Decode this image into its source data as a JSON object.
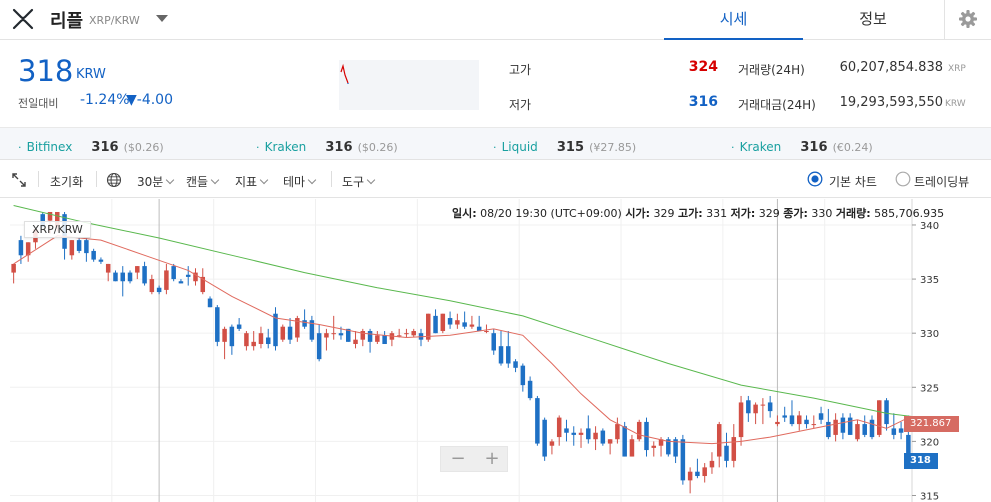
{
  "header": {
    "coin_name": "리플",
    "pair": "XRP/KRW",
    "tabs": [
      "시세",
      "정보"
    ],
    "active_tab": "시세"
  },
  "price": {
    "current": "318",
    "unit": "KRW",
    "change_label": "전일대비",
    "change_rate": "-1.24%",
    "change_amount": "▼-4.00",
    "color_down": "#1261c4",
    "color_up": "#d60000"
  },
  "stats": {
    "high_label": "고가",
    "high_value": "324",
    "low_label": "저가",
    "low_value": "316",
    "volume_label": "거래량(24H)",
    "volume_value": "60,207,854.838",
    "volume_unit": "XRP",
    "amount_label": "거래대금(24H)",
    "amount_value": "19,293,593,550",
    "amount_unit": "KRW"
  },
  "exchanges": [
    {
      "name": "Bitfinex",
      "price": "316",
      "sub": "($0.26)"
    },
    {
      "name": "Kraken",
      "price": "316",
      "sub": "($0.26)"
    },
    {
      "name": "Liquid",
      "price": "315",
      "sub": "(¥27.85)"
    },
    {
      "name": "Kraken",
      "price": "316",
      "sub": "(€0.24)"
    }
  ],
  "toolbar": {
    "reset": "초기화",
    "interval": "30분",
    "candle": "캔들",
    "indicator": "지표",
    "theme": "테마",
    "tools": "도구",
    "basic_chart": "기본 차트",
    "tradingview": "트레이딩뷰",
    "selected_chart": "기본 차트"
  },
  "chart_info": {
    "time_label": "일시:",
    "time": "08/20 19:30 (UTC+09:00)",
    "open_label": "시가:",
    "open": "329",
    "high_label": "고가:",
    "high": "331",
    "low_label": "저가:",
    "low": "329",
    "close_label": "종가:",
    "close": "330",
    "volume_label": "거래량:",
    "volume": "585,706.935"
  },
  "chart_data": {
    "type": "candlestick",
    "series_label": "XRP/KRW",
    "y_ticks": [
      315,
      320,
      325,
      330,
      335,
      340
    ],
    "ylim": [
      314.4,
      342.4
    ],
    "candles_ohlc": [
      [
        335.6,
        336.4,
        334.6,
        336.4
      ],
      [
        338.6,
        339.0,
        336.4,
        337.2
      ],
      [
        337.2,
        338.4,
        336.6,
        338.4
      ],
      [
        338.4,
        339.6,
        337.8,
        339.6
      ],
      [
        341.0,
        341.2,
        339.8,
        339.8
      ],
      [
        340.4,
        341.2,
        339.2,
        341.2
      ],
      [
        339.8,
        341.2,
        339.4,
        341.2
      ],
      [
        341.0,
        341.2,
        336.8,
        337.8
      ],
      [
        337.2,
        338.6,
        336.8,
        338.6
      ],
      [
        338.6,
        338.8,
        337.4,
        337.6
      ],
      [
        338.6,
        338.8,
        336.6,
        337.4
      ],
      [
        337.6,
        337.8,
        336.6,
        336.8
      ],
      [
        336.8,
        337.0,
        336.4,
        336.6
      ],
      [
        335.6,
        336.4,
        334.8,
        336.4
      ],
      [
        335.6,
        335.8,
        334.8,
        334.8
      ],
      [
        335.6,
        336.2,
        333.4,
        334.8
      ],
      [
        335.6,
        335.8,
        334.6,
        334.8
      ],
      [
        335.6,
        336.2,
        335.0,
        336.2
      ],
      [
        336.2,
        336.6,
        334.4,
        334.6
      ],
      [
        333.8,
        335.4,
        333.6,
        335.0
      ],
      [
        334.2,
        334.4,
        333.6,
        333.8
      ],
      [
        334.0,
        336.4,
        333.6,
        335.8
      ],
      [
        336.2,
        336.4,
        334.8,
        335.0
      ],
      [
        334.8,
        335.0,
        334.6,
        334.6
      ],
      [
        335.4,
        336.2,
        334.4,
        335.2
      ],
      [
        334.8,
        336.0,
        334.4,
        335.6
      ],
      [
        333.8,
        336.0,
        333.6,
        335.2
      ],
      [
        333.2,
        333.4,
        332.4,
        332.4
      ],
      [
        332.4,
        332.6,
        328.8,
        329.2
      ],
      [
        329.2,
        330.6,
        327.6,
        330.4
      ],
      [
        330.6,
        330.8,
        328.0,
        328.8
      ],
      [
        330.8,
        331.4,
        330.2,
        330.4
      ],
      [
        328.8,
        330.2,
        328.4,
        330.0
      ],
      [
        328.8,
        330.2,
        328.4,
        329.2
      ],
      [
        329.0,
        330.6,
        328.6,
        330.0
      ],
      [
        329.6,
        330.4,
        328.6,
        329.0
      ],
      [
        331.8,
        332.4,
        328.4,
        328.8
      ],
      [
        329.4,
        330.8,
        329.2,
        330.6
      ],
      [
        330.6,
        331.4,
        329.0,
        329.4
      ],
      [
        329.6,
        331.6,
        329.2,
        331.4
      ],
      [
        331.2,
        332.2,
        330.4,
        330.6
      ],
      [
        331.2,
        331.6,
        329.2,
        329.4
      ],
      [
        330.0,
        330.8,
        327.4,
        327.6
      ],
      [
        329.6,
        330.4,
        328.4,
        330.0
      ],
      [
        330.0,
        331.6,
        329.4,
        330.0
      ],
      [
        330.0,
        330.6,
        329.4,
        329.8
      ],
      [
        330.4,
        330.4,
        329.2,
        329.2
      ],
      [
        329.0,
        330.2,
        328.6,
        329.4
      ],
      [
        329.4,
        330.4,
        328.8,
        330.2
      ],
      [
        330.2,
        330.4,
        328.2,
        329.2
      ],
      [
        329.2,
        330.2,
        329.0,
        329.8
      ],
      [
        329.8,
        330.2,
        329.0,
        329.0
      ],
      [
        329.4,
        330.2,
        328.8,
        330.0
      ],
      [
        329.8,
        330.4,
        329.6,
        329.8
      ],
      [
        330.0,
        330.4,
        329.6,
        330.0
      ],
      [
        329.8,
        330.4,
        329.6,
        330.2
      ],
      [
        330.0,
        330.4,
        328.8,
        329.4
      ],
      [
        329.4,
        331.8,
        329.2,
        331.8
      ],
      [
        331.6,
        332.2,
        330.0,
        330.0
      ],
      [
        330.2,
        331.8,
        330.0,
        331.8
      ],
      [
        331.4,
        332.0,
        330.4,
        330.8
      ],
      [
        330.8,
        331.8,
        330.4,
        331.2
      ],
      [
        331.0,
        332.0,
        330.4,
        330.6
      ],
      [
        330.6,
        331.6,
        330.4,
        330.8
      ],
      [
        330.6,
        331.6,
        330.4,
        330.2
      ],
      [
        330.2,
        330.8,
        330.0,
        330.2
      ],
      [
        330.0,
        330.4,
        328.0,
        328.4
      ],
      [
        328.8,
        330.2,
        327.0,
        327.2
      ],
      [
        328.8,
        330.2,
        326.8,
        327.2
      ],
      [
        327.4,
        327.6,
        326.4,
        326.8
      ],
      [
        327.0,
        327.2,
        324.6,
        325.2
      ],
      [
        325.6,
        326.0,
        323.8,
        324.0
      ],
      [
        324.0,
        324.2,
        319.6,
        319.8
      ],
      [
        322.0,
        322.2,
        318.2,
        318.6
      ],
      [
        319.6,
        320.2,
        318.8,
        320.0
      ],
      [
        320.4,
        322.4,
        319.6,
        322.2
      ],
      [
        321.2,
        322.0,
        320.0,
        320.8
      ],
      [
        320.8,
        321.4,
        319.6,
        320.6
      ],
      [
        320.6,
        321.2,
        319.4,
        320.8
      ],
      [
        321.2,
        322.4,
        319.8,
        320.2
      ],
      [
        320.2,
        321.4,
        319.2,
        320.8
      ],
      [
        321.0,
        321.2,
        319.6,
        319.8
      ],
      [
        319.8,
        320.2,
        318.8,
        320.2
      ],
      [
        320.2,
        322.2,
        319.8,
        321.6
      ],
      [
        321.4,
        321.8,
        318.6,
        318.6
      ],
      [
        318.6,
        320.6,
        318.6,
        320.2
      ],
      [
        320.2,
        322.0,
        320.0,
        321.8
      ],
      [
        321.8,
        322.2,
        318.6,
        319.2
      ],
      [
        319.4,
        320.0,
        318.6,
        319.6
      ],
      [
        319.6,
        320.4,
        318.6,
        320.2
      ],
      [
        320.2,
        320.4,
        318.6,
        318.8
      ],
      [
        320.2,
        320.4,
        318.0,
        318.6
      ],
      [
        320.2,
        320.6,
        316.0,
        316.4
      ],
      [
        316.4,
        317.6,
        315.2,
        317.2
      ],
      [
        317.2,
        318.4,
        316.6,
        316.8
      ],
      [
        316.8,
        318.0,
        316.2,
        317.6
      ],
      [
        317.6,
        319.0,
        317.0,
        318.2
      ],
      [
        318.6,
        321.8,
        317.6,
        321.6
      ],
      [
        319.6,
        320.8,
        317.6,
        318.2
      ],
      [
        318.2,
        321.6,
        317.6,
        320.4
      ],
      [
        320.4,
        324.2,
        319.6,
        323.6
      ],
      [
        323.8,
        324.2,
        321.8,
        322.6
      ],
      [
        322.6,
        323.6,
        321.6,
        323.4
      ],
      [
        323.4,
        324.0,
        321.6,
        323.4
      ],
      [
        323.6,
        324.2,
        322.2,
        322.8
      ],
      [
        321.6,
        322.4,
        321.4,
        321.8
      ],
      [
        322.4,
        323.2,
        321.8,
        322.2
      ],
      [
        322.4,
        323.8,
        321.4,
        321.6
      ],
      [
        321.6,
        322.8,
        321.0,
        322.4
      ],
      [
        322.0,
        322.4,
        321.2,
        321.6
      ],
      [
        321.6,
        322.4,
        321.2,
        321.6
      ],
      [
        322.6,
        323.2,
        321.6,
        322.0
      ],
      [
        321.8,
        323.0,
        320.2,
        320.4
      ],
      [
        320.6,
        322.6,
        320.0,
        322.0
      ],
      [
        322.2,
        322.6,
        320.2,
        320.8
      ],
      [
        322.2,
        322.6,
        320.6,
        320.6
      ],
      [
        320.2,
        322.0,
        320.0,
        321.6
      ],
      [
        321.6,
        322.4,
        320.4,
        320.6
      ],
      [
        322.0,
        322.4,
        320.2,
        320.4
      ],
      [
        320.6,
        323.8,
        320.4,
        323.8
      ],
      [
        323.8,
        324.0,
        321.0,
        321.6
      ],
      [
        321.2,
        322.6,
        320.2,
        320.6
      ],
      [
        321.2,
        321.8,
        320.2,
        320.8
      ],
      [
        320.6,
        322.4,
        318.2,
        318.2
      ]
    ],
    "ma_red": [
      [
        0,
        336.4
      ],
      [
        6,
        339.0
      ],
      [
        12,
        338.6
      ],
      [
        18,
        337.2
      ],
      [
        24,
        335.8
      ],
      [
        30,
        333.4
      ],
      [
        36,
        331.4
      ],
      [
        42,
        330.8
      ],
      [
        48,
        330.0
      ],
      [
        54,
        329.6
      ],
      [
        60,
        329.8
      ],
      [
        66,
        330.4
      ],
      [
        70,
        329.8
      ],
      [
        74,
        327.2
      ],
      [
        78,
        324.4
      ],
      [
        82,
        322.0
      ],
      [
        86,
        320.6
      ],
      [
        90,
        320.0
      ],
      [
        96,
        319.8
      ],
      [
        100,
        320.0
      ],
      [
        104,
        320.4
      ],
      [
        110,
        321.2
      ],
      [
        116,
        322.0
      ],
      [
        120,
        321.2
      ],
      [
        123,
        322.2
      ],
      [
        127,
        321.8
      ]
    ],
    "ma_green": [
      [
        0,
        341.8
      ],
      [
        10,
        340.2
      ],
      [
        20,
        338.8
      ],
      [
        30,
        337.2
      ],
      [
        40,
        335.6
      ],
      [
        50,
        334.2
      ],
      [
        60,
        333.0
      ],
      [
        70,
        331.6
      ],
      [
        80,
        329.4
      ],
      [
        90,
        327.2
      ],
      [
        100,
        325.2
      ],
      [
        110,
        324.0
      ],
      [
        120,
        322.6
      ],
      [
        127,
        322.0
      ]
    ],
    "labels": {
      "red_tag": "321.867",
      "blue_tag": "318"
    }
  }
}
